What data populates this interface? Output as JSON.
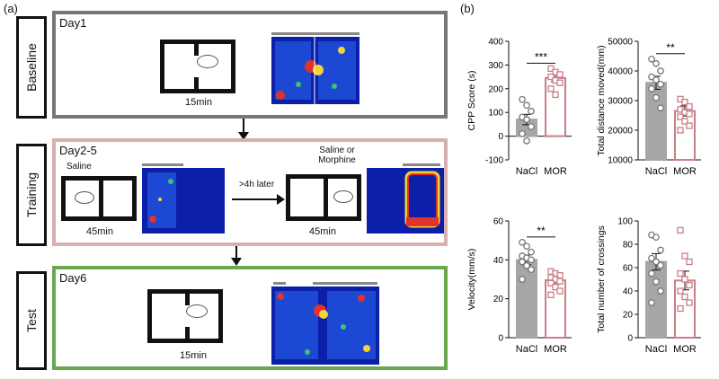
{
  "panel_a": {
    "label": "(a)",
    "stages": [
      {
        "name": "Baseline",
        "day": "Day1",
        "duration": "15min"
      },
      {
        "name": "Training",
        "day": "Day2-5",
        "left_condition": "Saline",
        "left_duration": "45min",
        "arrow_label": ">4h later",
        "right_condition": "Saline or\nMorphine",
        "right_duration": "45min"
      },
      {
        "name": "Test",
        "day": "Day6",
        "duration": "15min"
      }
    ],
    "colors": {
      "baseline": "#777777",
      "training": "#d6b0b0",
      "test": "#6aa84f"
    }
  },
  "panel_b": {
    "label": "(b)",
    "colors": {
      "nacl": "#a6a6a6",
      "mor": "#c97f86"
    },
    "chart_data": [
      {
        "type": "bar",
        "title": "",
        "ylabel": "CPP Score (s)",
        "categories": [
          "NaCl",
          "MOR"
        ],
        "values": [
          70,
          245
        ],
        "errors": [
          22,
          15
        ],
        "ylim": [
          -100,
          400
        ],
        "yticks": [
          "-100",
          "0",
          "100",
          "200",
          "300",
          "400"
        ],
        "significance": "***",
        "points": [
          [
            155,
            130,
            105,
            80,
            70,
            40,
            10,
            -20
          ],
          [
            285,
            270,
            260,
            250,
            235,
            225,
            200,
            175
          ]
        ]
      },
      {
        "type": "bar",
        "title": "",
        "ylabel": "Total distance moved(mm)",
        "categories": [
          "NaCl",
          "MOR"
        ],
        "values": [
          36000,
          26500
        ],
        "errors": [
          2200,
          1700
        ],
        "ylim": [
          10000,
          50000
        ],
        "yticks": [
          "10000",
          "20000",
          "30000",
          "40000",
          "50000"
        ],
        "significance": "**",
        "points": [
          [
            44000,
            42500,
            40000,
            38000,
            37000,
            35500,
            34000,
            31000,
            27500
          ],
          [
            30500,
            29500,
            28000,
            27000,
            26000,
            25500,
            24500,
            23000,
            21500,
            20000
          ]
        ]
      },
      {
        "type": "bar",
        "title": "",
        "ylabel": "Velocity(mm/s)",
        "categories": [
          "NaCl",
          "MOR"
        ],
        "values": [
          40,
          29.5
        ],
        "errors": [
          2.5,
          2
        ],
        "ylim": [
          0,
          60
        ],
        "yticks": [
          "0",
          "20",
          "40",
          "60"
        ],
        "significance": "**",
        "points": [
          [
            49,
            47,
            44,
            42,
            41,
            40,
            39,
            37,
            35,
            30
          ],
          [
            34,
            33,
            32,
            31,
            30,
            29,
            28,
            26,
            24,
            22
          ]
        ]
      },
      {
        "type": "bar",
        "title": "",
        "ylabel": "Total number of crossings",
        "categories": [
          "NaCl",
          "MOR"
        ],
        "values": [
          65,
          49
        ],
        "errors": [
          7,
          8
        ],
        "ylim": [
          0,
          100
        ],
        "yticks": [
          "0",
          "20",
          "40",
          "60",
          "80",
          "100"
        ],
        "significance": "",
        "points": [
          [
            88,
            86,
            75,
            68,
            65,
            62,
            55,
            48,
            40,
            30
          ],
          [
            92,
            70,
            65,
            55,
            50,
            45,
            40,
            35,
            30,
            25
          ]
        ]
      }
    ]
  }
}
